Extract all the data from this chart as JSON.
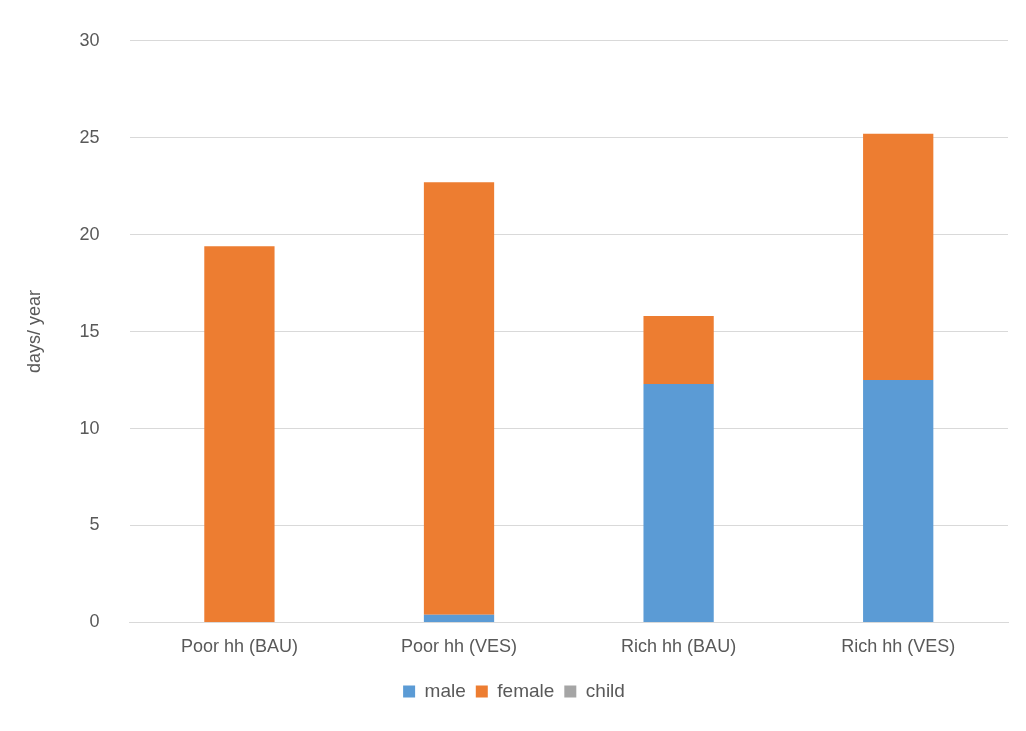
{
  "chart_data": {
    "type": "bar",
    "ylabel": "days/ year",
    "categories": [
      "Poor hh (BAU)",
      "Poor hh (VES)",
      "Rich hh (BAU)",
      "Rich hh (VES)"
    ],
    "series": [
      {
        "name": "male",
        "color": "#5b9bd5",
        "values": [
          0,
          0.4,
          12.3,
          12.5
        ]
      },
      {
        "name": "female",
        "color": "#ed7d31",
        "values": [
          19.4,
          22.3,
          3.5,
          12.7
        ]
      },
      {
        "name": "child",
        "color": "#a5a5a5",
        "values": [
          0,
          0,
          0,
          0
        ]
      }
    ],
    "stacked": true,
    "ylim": [
      0,
      30
    ],
    "yticks": [
      0,
      5,
      10,
      15,
      20,
      25,
      30
    ],
    "grid": "y",
    "legend": "bottom"
  }
}
